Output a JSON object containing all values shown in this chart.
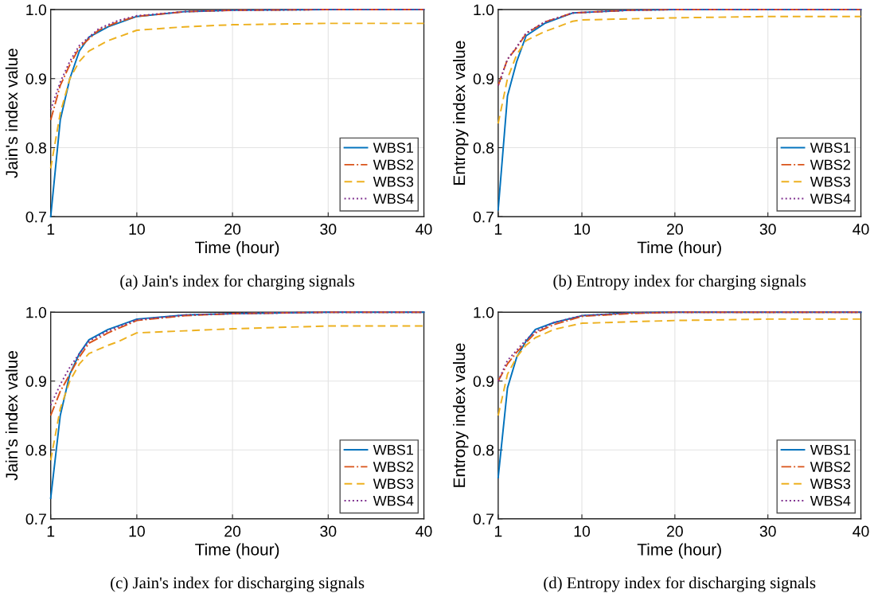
{
  "chart_data": [
    {
      "type": "line",
      "xlabel": "Time (hour)",
      "ylabel": "Jain's index value",
      "xlim": [
        1,
        40
      ],
      "ylim": [
        0.7,
        1.0
      ],
      "xticks": [
        1,
        10,
        20,
        30,
        40
      ],
      "yticks": [
        {
          "value": 0.7,
          "label": "0.7"
        },
        {
          "value": 0.8,
          "label": "0.8"
        },
        {
          "value": 0.9,
          "label": "0.9"
        },
        {
          "value": 1.0,
          "label": "1.0"
        }
      ],
      "grid": true,
      "legend": "bottom right",
      "annotations": [
        "(a) Jain's index for charging signals"
      ],
      "series": [
        {
          "name": "WBS1",
          "color": "#0072bd",
          "line_style": "solid",
          "x": [
            1,
            2,
            3,
            4,
            5,
            7,
            10,
            15,
            20,
            30,
            40
          ],
          "values": [
            0.7,
            0.84,
            0.9,
            0.94,
            0.96,
            0.975,
            0.99,
            0.997,
            0.999,
            1.0,
            1.0
          ]
        },
        {
          "name": "WBS2",
          "color": "#d95319",
          "line_style": "dashdot",
          "x": [
            1,
            2,
            3,
            4,
            6,
            8,
            10,
            15,
            20,
            30,
            40
          ],
          "values": [
            0.84,
            0.89,
            0.92,
            0.945,
            0.97,
            0.982,
            0.99,
            0.997,
            0.999,
            1.0,
            1.0
          ]
        },
        {
          "name": "WBS3",
          "color": "#edb120",
          "line_style": "dashed",
          "x": [
            1,
            2,
            3,
            4,
            5,
            7,
            10,
            15,
            20,
            30,
            40
          ],
          "values": [
            0.77,
            0.85,
            0.9,
            0.925,
            0.94,
            0.955,
            0.97,
            0.975,
            0.978,
            0.98,
            0.98
          ]
        },
        {
          "name": "WBS4",
          "color": "#7e2f8e",
          "line_style": "dotted",
          "x": [
            1,
            2,
            3,
            4,
            6,
            8,
            10,
            15,
            20,
            30,
            40
          ],
          "values": [
            0.855,
            0.895,
            0.925,
            0.948,
            0.972,
            0.984,
            0.991,
            0.997,
            0.999,
            1.0,
            1.0
          ]
        }
      ]
    },
    {
      "type": "line",
      "xlabel": "Time (hour)",
      "ylabel": "Entropy index value",
      "xlim": [
        1,
        40
      ],
      "ylim": [
        0.7,
        1.0
      ],
      "xticks": [
        1,
        10,
        20,
        30,
        40
      ],
      "yticks": [
        {
          "value": 0.7,
          "label": "0.7"
        },
        {
          "value": 0.8,
          "label": "0.8"
        },
        {
          "value": 0.9,
          "label": "0.9"
        },
        {
          "value": 1.0,
          "label": "1.0"
        }
      ],
      "grid": true,
      "legend": "bottom right",
      "annotations": [
        "(b) Entropy index for charging signals"
      ],
      "series": [
        {
          "name": "WBS1",
          "color": "#0072bd",
          "line_style": "solid",
          "x": [
            1,
            2,
            3,
            4,
            6,
            9,
            15,
            20,
            30,
            40
          ],
          "values": [
            0.71,
            0.875,
            0.925,
            0.962,
            0.98,
            0.995,
            0.999,
            1.0,
            1.0,
            1.0
          ]
        },
        {
          "name": "WBS2",
          "color": "#d95319",
          "line_style": "dashdot",
          "x": [
            1,
            2,
            3,
            4,
            6,
            9,
            15,
            20,
            30,
            40
          ],
          "values": [
            0.89,
            0.928,
            0.945,
            0.965,
            0.982,
            0.995,
            0.999,
            1.0,
            1.0,
            1.0
          ]
        },
        {
          "name": "WBS3",
          "color": "#edb120",
          "line_style": "dashed",
          "x": [
            1,
            2,
            3,
            4,
            6,
            9,
            10,
            20,
            30,
            40
          ],
          "values": [
            0.835,
            0.9,
            0.935,
            0.955,
            0.968,
            0.983,
            0.985,
            0.988,
            0.99,
            0.99
          ]
        },
        {
          "name": "WBS4",
          "color": "#7e2f8e",
          "line_style": "dotted",
          "x": [
            1,
            2,
            3,
            4,
            6,
            9,
            15,
            20,
            30,
            40
          ],
          "values": [
            0.89,
            0.928,
            0.946,
            0.966,
            0.982,
            0.995,
            0.999,
            1.0,
            1.0,
            1.0
          ]
        }
      ]
    },
    {
      "type": "line",
      "xlabel": "Time (hour)",
      "ylabel": "Jain's index value",
      "xlim": [
        1,
        40
      ],
      "ylim": [
        0.7,
        1.0
      ],
      "xticks": [
        1,
        10,
        20,
        30,
        40
      ],
      "yticks": [
        {
          "value": 0.7,
          "label": "0.7"
        },
        {
          "value": 0.8,
          "label": "0.8"
        },
        {
          "value": 0.9,
          "label": "0.9"
        },
        {
          "value": 1.0,
          "label": "1.0"
        }
      ],
      "grid": true,
      "legend": "bottom right",
      "annotations": [
        "(c) Jain's index for discharging signals"
      ],
      "series": [
        {
          "name": "WBS1",
          "color": "#0072bd",
          "line_style": "solid",
          "x": [
            1,
            2,
            3,
            4,
            5,
            7,
            8,
            10,
            15,
            20,
            30,
            40
          ],
          "values": [
            0.73,
            0.85,
            0.91,
            0.94,
            0.96,
            0.975,
            0.98,
            0.99,
            0.996,
            0.998,
            1.0,
            1.0
          ]
        },
        {
          "name": "WBS2",
          "color": "#d95319",
          "line_style": "dashdot",
          "x": [
            1,
            2,
            3,
            4,
            5,
            7,
            10,
            15,
            20,
            30,
            40
          ],
          "values": [
            0.85,
            0.885,
            0.91,
            0.935,
            0.955,
            0.97,
            0.988,
            0.995,
            0.998,
            1.0,
            1.0
          ]
        },
        {
          "name": "WBS3",
          "color": "#edb120",
          "line_style": "dashed",
          "x": [
            1,
            2,
            3,
            4,
            5,
            7,
            8,
            10,
            15,
            20,
            30,
            40
          ],
          "values": [
            0.785,
            0.86,
            0.9,
            0.925,
            0.94,
            0.952,
            0.957,
            0.97,
            0.973,
            0.976,
            0.98,
            0.98
          ]
        },
        {
          "name": "WBS4",
          "color": "#7e2f8e",
          "line_style": "dotted",
          "x": [
            1,
            2,
            3,
            4,
            5,
            7,
            10,
            15,
            20,
            30,
            40
          ],
          "values": [
            0.865,
            0.895,
            0.92,
            0.94,
            0.958,
            0.973,
            0.989,
            0.996,
            0.998,
            1.0,
            1.0
          ]
        }
      ]
    },
    {
      "type": "line",
      "xlabel": "Time (hour)",
      "ylabel": "Entropy index value",
      "xlim": [
        1,
        40
      ],
      "ylim": [
        0.7,
        1.0
      ],
      "xticks": [
        1,
        10,
        20,
        30,
        40
      ],
      "yticks": [
        {
          "value": 0.7,
          "label": "0.7"
        },
        {
          "value": 0.8,
          "label": "0.8"
        },
        {
          "value": 0.9,
          "label": "0.9"
        },
        {
          "value": 1.0,
          "label": "1.0"
        }
      ],
      "grid": true,
      "legend": "bottom right",
      "annotations": [
        "(d) Entropy index for discharging signals"
      ],
      "series": [
        {
          "name": "WBS1",
          "color": "#0072bd",
          "line_style": "solid",
          "x": [
            1,
            2,
            3,
            4,
            5,
            7,
            10,
            15,
            20,
            30,
            40
          ],
          "values": [
            0.76,
            0.89,
            0.935,
            0.958,
            0.975,
            0.985,
            0.995,
            0.999,
            1.0,
            1.0,
            1.0
          ]
        },
        {
          "name": "WBS2",
          "color": "#d95319",
          "line_style": "dashdot",
          "x": [
            1,
            2,
            3,
            4,
            5,
            7,
            10,
            15,
            20,
            30,
            40
          ],
          "values": [
            0.9,
            0.925,
            0.942,
            0.956,
            0.97,
            0.982,
            0.994,
            0.998,
            1.0,
            1.0,
            1.0
          ]
        },
        {
          "name": "WBS3",
          "color": "#edb120",
          "line_style": "dashed",
          "x": [
            1,
            2,
            3,
            4,
            5,
            7,
            10,
            20,
            30,
            40
          ],
          "values": [
            0.85,
            0.91,
            0.935,
            0.952,
            0.963,
            0.975,
            0.984,
            0.988,
            0.99,
            0.99
          ]
        },
        {
          "name": "WBS4",
          "color": "#7e2f8e",
          "line_style": "dotted",
          "x": [
            1,
            2,
            3,
            4,
            5,
            7,
            10,
            15,
            20,
            30,
            40
          ],
          "values": [
            0.9,
            0.93,
            0.945,
            0.96,
            0.972,
            0.985,
            0.995,
            0.999,
            1.0,
            1.0,
            1.0
          ]
        }
      ]
    }
  ]
}
